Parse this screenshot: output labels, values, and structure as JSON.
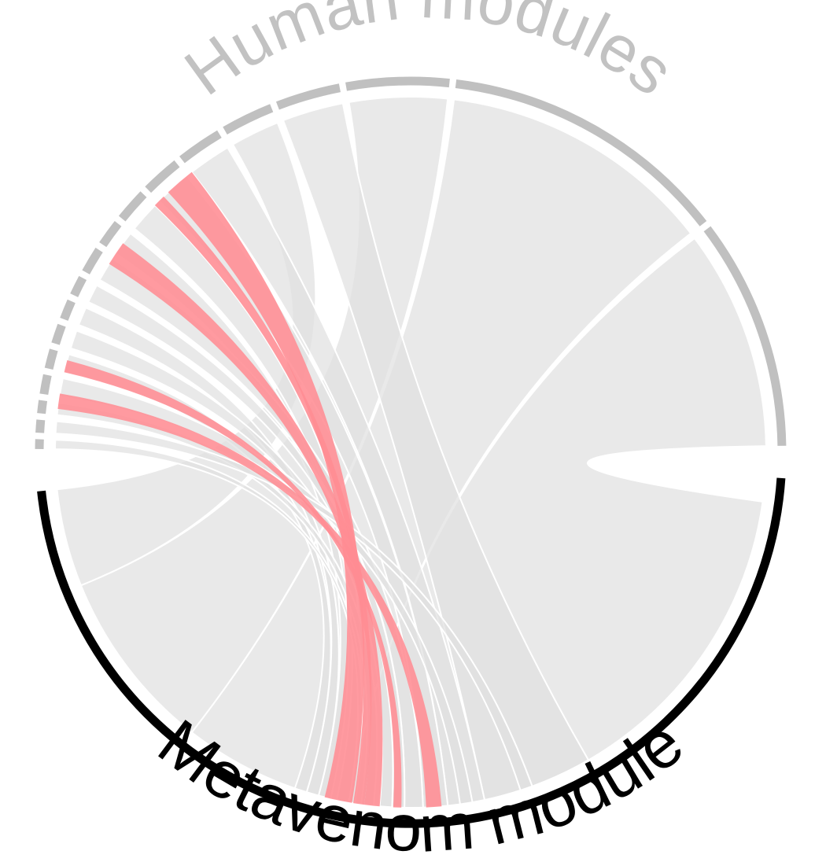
{
  "labels": {
    "human": "Human modules",
    "metavenom": "Metavenom module"
  },
  "colors": {
    "human_arc": "#c0c0c0",
    "metavenom_arc": "#000000",
    "ribbon_grey": "#e0e0e0",
    "ribbon_highlight": "#ff8c93",
    "background": "#ffffff"
  },
  "chart_data": {
    "type": "chord",
    "groups": [
      {
        "id": "metavenom",
        "name": "Metavenom module",
        "share": 0.5
      },
      {
        "id": "human",
        "name": "Human modules",
        "share": 0.5,
        "module_count": 18
      }
    ],
    "highlighted_links": 5
  }
}
